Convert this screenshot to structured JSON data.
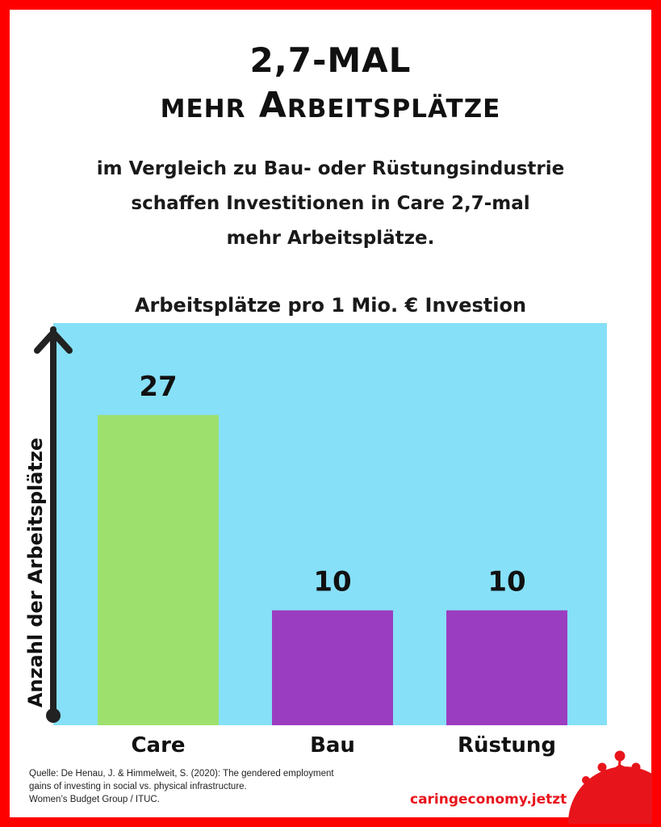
{
  "header": {
    "title_line1": "2,7-MAL",
    "title_line2": "mehr Arbeitsplätze",
    "subtitle_lines": [
      "im Vergleich zu Bau- oder Rüstungsindustrie",
      "schaffen Investitionen in Care 2,7-mal",
      "mehr Arbeitsplätze."
    ]
  },
  "chart_data": {
    "type": "bar",
    "title": "Arbeitsplätze pro 1 Mio. € Investion",
    "ylabel": "Anzahl der Arbeitsplätze",
    "xlabel": "",
    "categories": [
      "Care",
      "Bau",
      "Rüstung"
    ],
    "values": [
      27,
      10,
      10
    ],
    "bar_colors": [
      "#9ee06e",
      "#9b3dc1",
      "#9b3dc1"
    ],
    "background_color": "#86e0f7",
    "ylim": [
      0,
      35
    ],
    "grid": false,
    "legend": "none"
  },
  "footer": {
    "source_lines": [
      "Quelle: De Henau, J. & Himmelweit, S. (2020): The gendered employment",
      "gains of investing in social vs. physical infrastructure.",
      "Women’s Budget Group / ITUC."
    ],
    "brand": "caringeconomy.jetzt"
  },
  "colors": {
    "frame": "#ff0000",
    "brand": "#e8141c",
    "text": "#111111"
  },
  "icons": [
    "people-logo-icon",
    "y-axis-arrow-icon"
  ]
}
